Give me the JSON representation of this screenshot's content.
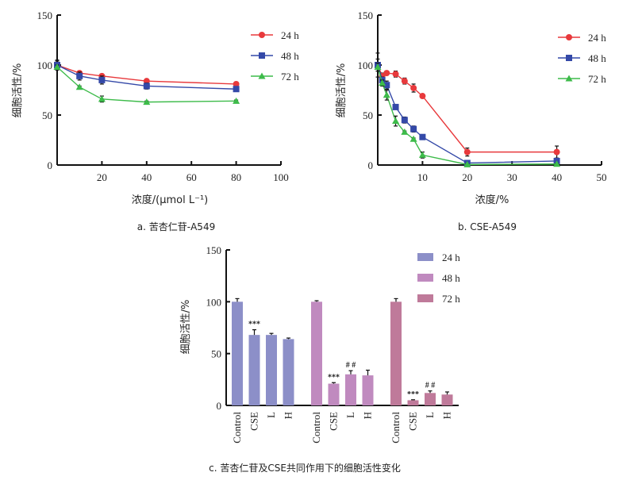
{
  "chart_data": [
    {
      "id": "a",
      "type": "line",
      "caption": "a.  苦杏仁苷-A549",
      "xlabel": "浓度/(μmol  L⁻¹)",
      "ylabel": "细胞活性/%",
      "xlim": [
        0,
        100
      ],
      "ylim": [
        0,
        150
      ],
      "xticks": [
        20,
        40,
        60,
        80,
        100
      ],
      "yticks": [
        0,
        50,
        100,
        150
      ],
      "legend": "top-right",
      "grid": false,
      "x": [
        0,
        10,
        20,
        40,
        80
      ],
      "series": [
        {
          "name": "24 h",
          "color": "#e8393c",
          "marker": "circle",
          "values": [
            100,
            92,
            89,
            84,
            81
          ],
          "errors": [
            4,
            2,
            2,
            2,
            2
          ]
        },
        {
          "name": "48 h",
          "color": "#3449a8",
          "marker": "square",
          "values": [
            100,
            89,
            85,
            79,
            76
          ],
          "errors": [
            5,
            4,
            4,
            3,
            2
          ]
        },
        {
          "name": "72 h",
          "color": "#3dbb4a",
          "marker": "triangle",
          "values": [
            98,
            78,
            66,
            63,
            64
          ],
          "errors": [
            2,
            1,
            3,
            1,
            1
          ]
        }
      ]
    },
    {
      "id": "b",
      "type": "line",
      "caption": "b.  CSE-A549",
      "xlabel": "浓度/%",
      "ylabel": "细胞活性/%",
      "xlim": [
        0,
        50
      ],
      "ylim": [
        0,
        150
      ],
      "xticks": [
        10,
        20,
        30,
        40,
        50
      ],
      "yticks": [
        0,
        50,
        100,
        150
      ],
      "legend": "top-right",
      "grid": false,
      "x": [
        0,
        1,
        2,
        4,
        6,
        8,
        10,
        20,
        40
      ],
      "series": [
        {
          "name": "24 h",
          "color": "#e8393c",
          "marker": "circle",
          "values": [
            100,
            89,
            92,
            91,
            84,
            77,
            69,
            13,
            13
          ],
          "errors": [
            12,
            3,
            2,
            3,
            3,
            4,
            2,
            4,
            6
          ]
        },
        {
          "name": "48 h",
          "color": "#3449a8",
          "marker": "square",
          "values": [
            100,
            85,
            80,
            58,
            45,
            36,
            28,
            2,
            4
          ],
          "errors": [
            6,
            3,
            4,
            2,
            3,
            3,
            2,
            1,
            2
          ]
        },
        {
          "name": "72 h",
          "color": "#3dbb4a",
          "marker": "triangle",
          "values": [
            98,
            82,
            70,
            44,
            33,
            26,
            10,
            0.5,
            1
          ],
          "errors": [
            4,
            3,
            5,
            5,
            1,
            1,
            3,
            0.5,
            0.5
          ]
        }
      ]
    },
    {
      "id": "c",
      "type": "bar",
      "caption": "c.  苦杏仁苷及CSE共同作用下的细胞活性变化",
      "xlabel": "",
      "ylabel": "细胞活性/%",
      "ylim": [
        0,
        150
      ],
      "yticks": [
        0,
        50,
        100,
        150
      ],
      "legend": "top-right",
      "grid": false,
      "categories": [
        "Control",
        "CSE",
        "L",
        "H"
      ],
      "series": [
        {
          "name": "24 h",
          "color": "#8c8fc8",
          "values": [
            100,
            68,
            68,
            64
          ],
          "errors": [
            3,
            5,
            1.5,
            1
          ],
          "annotations": [
            "",
            "***",
            "",
            ""
          ]
        },
        {
          "name": "48 h",
          "color": "#c08abf",
          "values": [
            100,
            21,
            30,
            29
          ],
          "errors": [
            1,
            1,
            3.5,
            5
          ],
          "annotations": [
            "",
            "***",
            "##",
            ""
          ]
        },
        {
          "name": "72 h",
          "color": "#bf7a9a",
          "values": [
            100,
            5,
            12,
            10.5
          ],
          "errors": [
            3,
            0.5,
            2,
            2.5
          ],
          "annotations": [
            "",
            "***",
            "##",
            ""
          ]
        }
      ]
    }
  ]
}
